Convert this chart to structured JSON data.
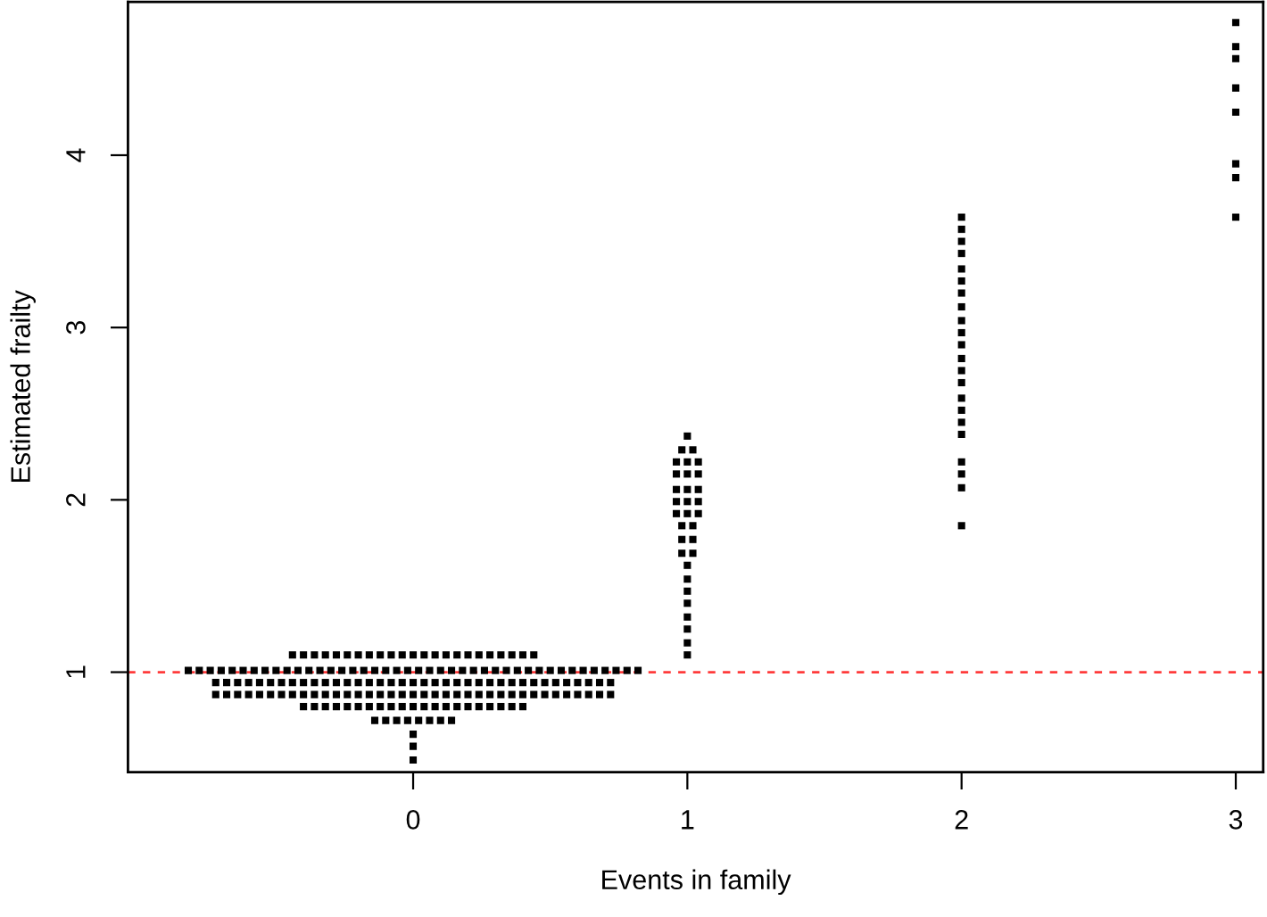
{
  "chart_data": {
    "type": "scatter",
    "xlabel": "Events in family",
    "ylabel": "Estimated frailty",
    "xlim": [
      -1.04,
      3.1
    ],
    "ylim": [
      0.42,
      4.89
    ],
    "xticks": [
      0,
      1,
      2,
      3
    ],
    "yticks": [
      1,
      2,
      3,
      4
    ],
    "grid": false,
    "marker": "square",
    "ref_lines": [
      {
        "axis": "y",
        "value": 1,
        "color": "#ff3b3b",
        "line_style": "dashed"
      }
    ],
    "series": [
      {
        "color": "#000000",
        "x": [
          -0.44,
          -0.4,
          -0.36,
          -0.32,
          -0.28,
          -0.24,
          -0.2,
          -0.16,
          -0.12,
          -0.08,
          -0.04,
          0,
          0.04,
          0.08,
          0.12,
          0.16,
          0.2,
          0.24,
          0.28,
          0.32,
          0.36,
          0.4,
          0.44,
          -0.82,
          -0.78,
          -0.74,
          -0.7,
          -0.66,
          -0.62,
          -0.58,
          -0.54,
          -0.5,
          -0.46,
          -0.42,
          -0.38,
          -0.34,
          -0.3,
          -0.26,
          -0.22,
          -0.18,
          -0.14,
          -0.1,
          -0.06,
          -0.02,
          0.02,
          0.06,
          0.1,
          0.14,
          0.18,
          0.22,
          0.26,
          0.3,
          0.34,
          0.38,
          0.42,
          0.46,
          0.5,
          0.54,
          0.58,
          0.62,
          0.66,
          0.7,
          0.74,
          0.78,
          0.82,
          -0.72,
          -0.68,
          -0.64,
          -0.6,
          -0.56,
          -0.52,
          -0.48,
          -0.44,
          -0.4,
          -0.36,
          -0.32,
          -0.28,
          -0.24,
          -0.2,
          -0.16,
          -0.12,
          -0.08,
          -0.04,
          0,
          0.04,
          0.08,
          0.12,
          0.16,
          0.2,
          0.24,
          0.28,
          0.32,
          0.36,
          0.4,
          0.44,
          0.48,
          0.52,
          0.56,
          0.6,
          0.64,
          0.68,
          0.72,
          -0.72,
          -0.68,
          -0.64,
          -0.6,
          -0.56,
          -0.52,
          -0.48,
          -0.44,
          -0.4,
          -0.36,
          -0.32,
          -0.28,
          -0.24,
          -0.2,
          -0.16,
          -0.12,
          -0.08,
          -0.04,
          0,
          0.04,
          0.08,
          0.12,
          0.16,
          0.2,
          0.24,
          0.28,
          0.32,
          0.36,
          0.4,
          0.44,
          0.48,
          0.52,
          0.56,
          0.6,
          0.64,
          0.68,
          0.72,
          -0.4,
          -0.36,
          -0.32,
          -0.28,
          -0.24,
          -0.2,
          -0.16,
          -0.12,
          -0.08,
          -0.04,
          0,
          0.04,
          0.08,
          0.12,
          0.16,
          0.2,
          0.24,
          0.28,
          0.32,
          0.36,
          0.4,
          -0.14,
          -0.1,
          -0.06,
          -0.02,
          0.02,
          0.06,
          0.1,
          0.14,
          0,
          0,
          0
        ],
        "values": [
          1.1,
          1.1,
          1.1,
          1.1,
          1.1,
          1.1,
          1.1,
          1.1,
          1.1,
          1.1,
          1.1,
          1.1,
          1.1,
          1.1,
          1.1,
          1.1,
          1.1,
          1.1,
          1.1,
          1.1,
          1.1,
          1.1,
          1.1,
          1.01,
          1.01,
          1.01,
          1.01,
          1.01,
          1.01,
          1.01,
          1.01,
          1.01,
          1.01,
          1.01,
          1.01,
          1.01,
          1.01,
          1.01,
          1.01,
          1.01,
          1.01,
          1.01,
          1.01,
          1.01,
          1.01,
          1.01,
          1.01,
          1.01,
          1.01,
          1.01,
          1.01,
          1.01,
          1.01,
          1.01,
          1.01,
          1.01,
          1.01,
          1.01,
          1.01,
          1.01,
          1.01,
          1.01,
          1.01,
          1.01,
          1.01,
          0.94,
          0.94,
          0.94,
          0.94,
          0.94,
          0.94,
          0.94,
          0.94,
          0.94,
          0.94,
          0.94,
          0.94,
          0.94,
          0.94,
          0.94,
          0.94,
          0.94,
          0.94,
          0.94,
          0.94,
          0.94,
          0.94,
          0.94,
          0.94,
          0.94,
          0.94,
          0.94,
          0.94,
          0.94,
          0.94,
          0.94,
          0.94,
          0.94,
          0.94,
          0.94,
          0.94,
          0.94,
          0.87,
          0.87,
          0.87,
          0.87,
          0.87,
          0.87,
          0.87,
          0.87,
          0.87,
          0.87,
          0.87,
          0.87,
          0.87,
          0.87,
          0.87,
          0.87,
          0.87,
          0.87,
          0.87,
          0.87,
          0.87,
          0.87,
          0.87,
          0.87,
          0.87,
          0.87,
          0.87,
          0.87,
          0.87,
          0.87,
          0.87,
          0.87,
          0.87,
          0.87,
          0.87,
          0.87,
          0.87,
          0.8,
          0.8,
          0.8,
          0.8,
          0.8,
          0.8,
          0.8,
          0.8,
          0.8,
          0.8,
          0.8,
          0.8,
          0.8,
          0.8,
          0.8,
          0.8,
          0.8,
          0.8,
          0.8,
          0.8,
          0.8,
          0.72,
          0.72,
          0.72,
          0.72,
          0.72,
          0.72,
          0.72,
          0.72,
          0.64,
          0.57,
          0.49
        ]
      },
      {
        "color": "#000000",
        "x": [
          1,
          0.98,
          1.02,
          0.96,
          1,
          1.04,
          0.96,
          1,
          1.04,
          0.96,
          1,
          1.04,
          0.96,
          1,
          1.04,
          0.96,
          1,
          1.04,
          0.98,
          1.02,
          0.98,
          1.02,
          0.98,
          1.02,
          1,
          1,
          1,
          1,
          1,
          1,
          1,
          1
        ],
        "values": [
          2.37,
          2.29,
          2.29,
          2.22,
          2.22,
          2.22,
          2.15,
          2.15,
          2.15,
          2.06,
          2.06,
          2.06,
          1.99,
          1.99,
          1.99,
          1.92,
          1.92,
          1.92,
          1.85,
          1.85,
          1.77,
          1.77,
          1.69,
          1.69,
          1.62,
          1.54,
          1.47,
          1.4,
          1.32,
          1.25,
          1.17,
          1.1
        ]
      },
      {
        "color": "#000000",
        "x": [
          2,
          2,
          2,
          2,
          2,
          2,
          2,
          2,
          2,
          2,
          2,
          2,
          2,
          2,
          2,
          2,
          2,
          2,
          2,
          2,
          2,
          2
        ],
        "values": [
          3.64,
          3.57,
          3.5,
          3.43,
          3.34,
          3.27,
          3.2,
          3.12,
          3.04,
          2.97,
          2.9,
          2.82,
          2.75,
          2.68,
          2.59,
          2.52,
          2.45,
          2.38,
          2.22,
          2.15,
          2.07,
          1.85
        ]
      },
      {
        "color": "#000000",
        "x": [
          3,
          3,
          3,
          3,
          3,
          3,
          3,
          3
        ],
        "values": [
          4.77,
          4.63,
          4.56,
          4.39,
          4.25,
          3.95,
          3.87,
          3.64
        ]
      }
    ]
  }
}
